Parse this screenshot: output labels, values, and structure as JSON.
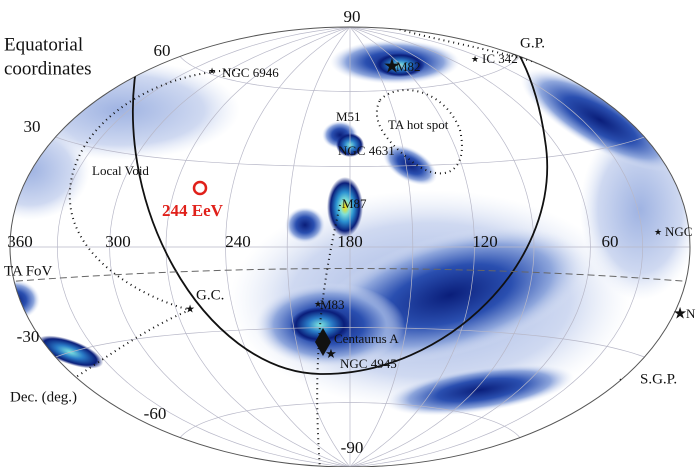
{
  "title": [
    "Equatorial",
    "coordinates"
  ],
  "dec_labels": [
    90,
    60,
    30,
    -30,
    -60,
    -90
  ],
  "ra_labels": [
    360,
    300,
    240,
    180,
    120,
    60
  ],
  "axis_label": "Dec. (deg.)",
  "event_label": "244 EeV",
  "regions": [
    "G.P.",
    "S.G.P.",
    "Local Void",
    "TA hot spot",
    "TA FoV",
    "G.C."
  ],
  "sources": [
    "NGC 6946",
    "IC 342",
    "M82",
    "M51",
    "NGC 4631",
    "M87",
    "NGC",
    "M83",
    "Centaurus A",
    "NGC 4945",
    "N"
  ]
}
